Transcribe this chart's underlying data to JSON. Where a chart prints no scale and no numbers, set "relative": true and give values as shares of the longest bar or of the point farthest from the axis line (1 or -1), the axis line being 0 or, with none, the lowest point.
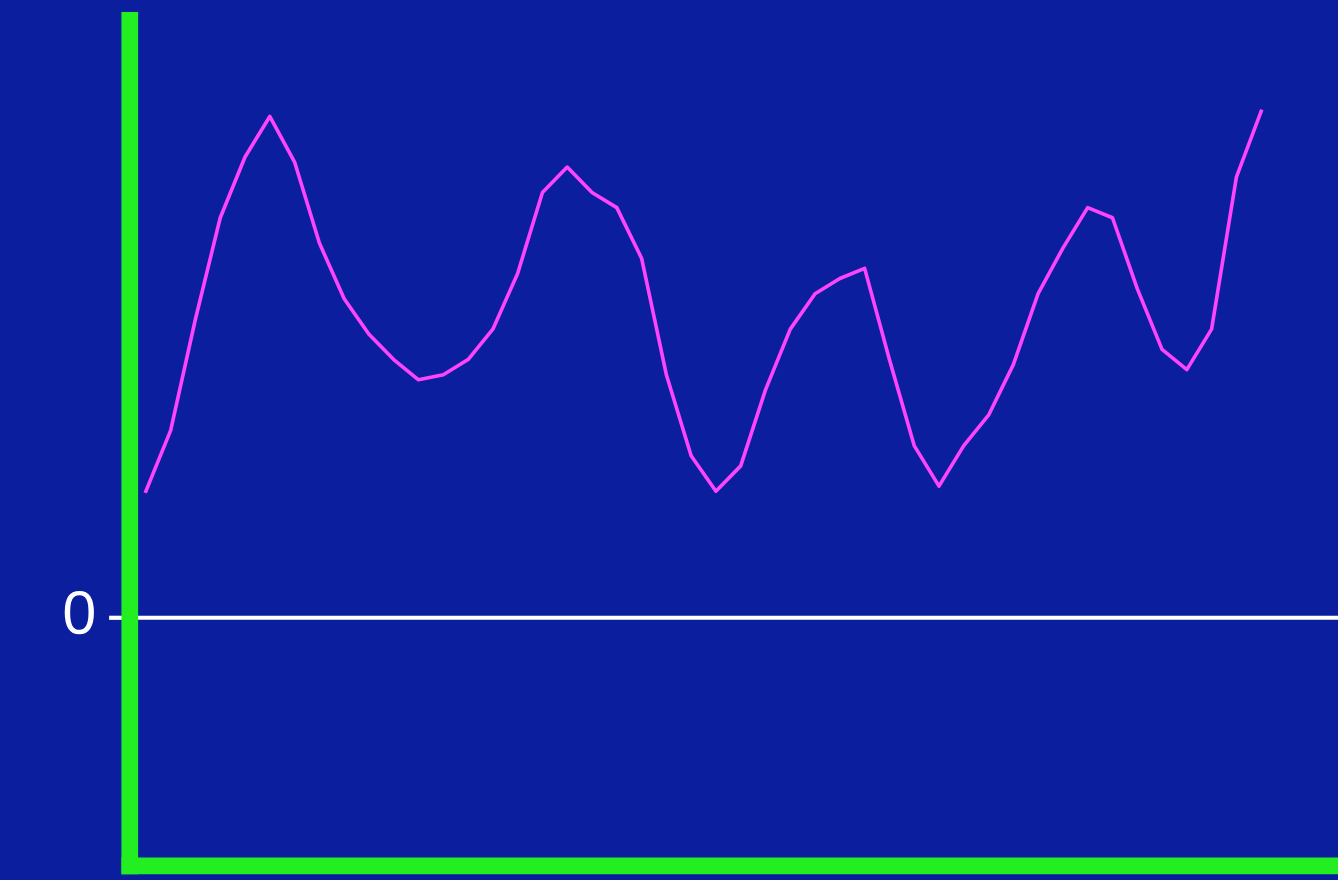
{
  "chart_data": {
    "type": "line",
    "relative": true,
    "categories": [
      null,
      null,
      null,
      null,
      null,
      null,
      null,
      null,
      null,
      null,
      null,
      null,
      null,
      null,
      null,
      null,
      null,
      null,
      null,
      null,
      null,
      null,
      null,
      null,
      null,
      null,
      null,
      null,
      null,
      null,
      null,
      null,
      null,
      null,
      null,
      null,
      null,
      null,
      null,
      null,
      null,
      null,
      null,
      null,
      null,
      null
    ],
    "series": [
      {
        "color": "#ff44ff",
        "values": [
          0.25,
          0.37,
          0.59,
          0.79,
          0.91,
          0.99,
          0.9,
          0.74,
          0.63,
          0.56,
          0.51,
          0.47,
          0.48,
          0.51,
          0.57,
          0.68,
          0.84,
          0.89,
          0.84,
          0.81,
          0.71,
          0.48,
          0.32,
          0.25,
          0.3,
          0.45,
          0.57,
          0.64,
          0.67,
          0.69,
          0.51,
          0.34,
          0.26,
          0.34,
          0.4,
          0.5,
          0.64,
          0.73,
          0.81,
          0.79,
          0.65,
          0.53,
          0.49,
          0.57,
          0.87,
          1
        ]
      }
    ],
    "ref_lines": [
      {
        "axis": "y",
        "value": 0,
        "label": "0",
        "color": "#ffffff"
      }
    ],
    "legend": false
  }
}
